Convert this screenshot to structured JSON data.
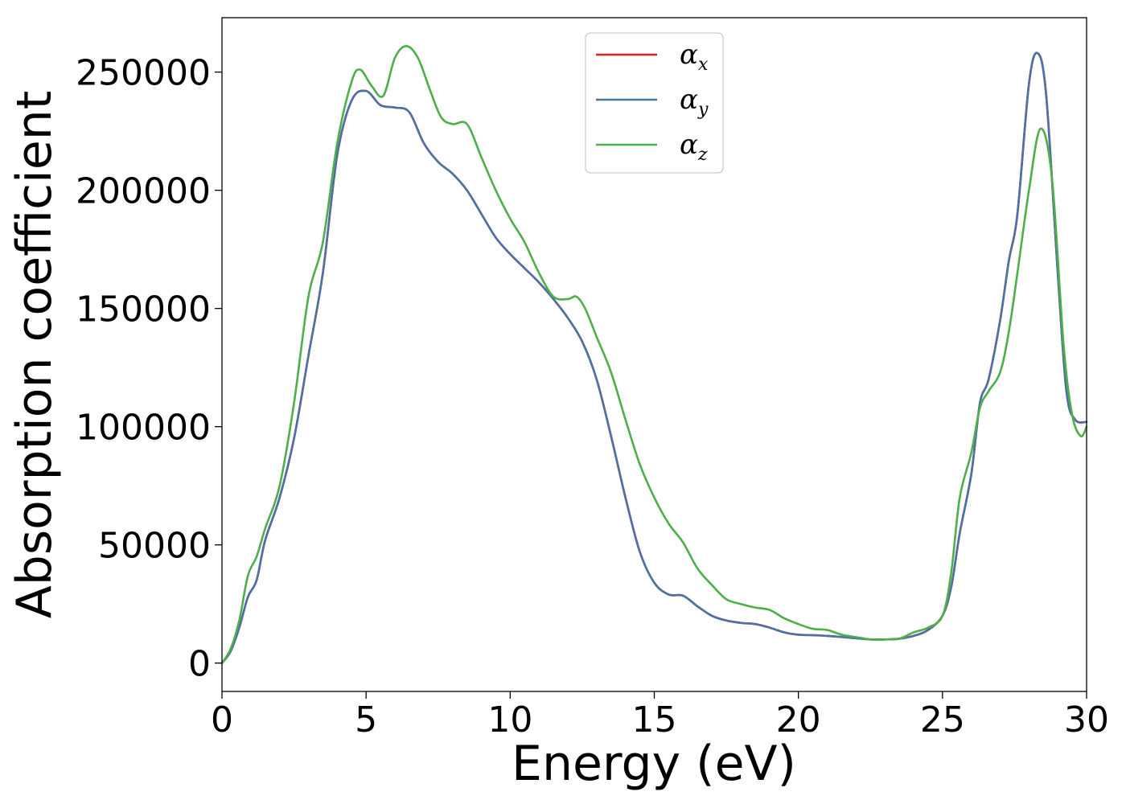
{
  "chart_data": {
    "type": "line",
    "xlabel": "Energy (eV)",
    "ylabel": "Absorption coefficient",
    "xlim": [
      0,
      30
    ],
    "ylim": [
      -12000,
      273000
    ],
    "xticks": [
      0,
      5,
      10,
      15,
      20,
      25,
      30
    ],
    "xtick_labels": [
      "0",
      "5",
      "10",
      "15",
      "20",
      "25",
      "30"
    ],
    "yticks": [
      0,
      50000,
      100000,
      150000,
      200000,
      250000
    ],
    "ytick_labels": [
      "0",
      "50000",
      "100000",
      "150000",
      "200000",
      "250000"
    ],
    "grid": false,
    "legend_position": "top-center",
    "series": [
      {
        "name": "α_x",
        "symbol": "α",
        "subscript": "x",
        "color": "#e41a1c",
        "x": [
          0,
          0.3,
          0.6,
          0.9,
          1.2,
          1.5,
          2.0,
          2.5,
          3.0,
          3.5,
          4.0,
          4.5,
          5.0,
          5.5,
          6.0,
          6.5,
          7.0,
          7.5,
          8.0,
          8.5,
          9.0,
          9.5,
          10.0,
          10.5,
          11.0,
          11.5,
          12.0,
          12.5,
          13.0,
          13.5,
          14.0,
          14.5,
          15.0,
          15.5,
          16.0,
          16.5,
          17.0,
          17.5,
          18.0,
          18.5,
          19.0,
          19.5,
          20.0,
          20.5,
          21.0,
          21.5,
          22.0,
          22.5,
          23.0,
          23.5,
          24.0,
          24.5,
          25.0,
          25.3,
          25.6,
          26.0,
          26.3,
          26.6,
          27.0,
          27.3,
          27.6,
          28.0,
          28.3,
          28.6,
          29.0,
          29.3,
          29.6,
          30.0
        ],
        "y": [
          0,
          5000,
          15000,
          28000,
          35000,
          52000,
          70000,
          95000,
          130000,
          165000,
          215000,
          238000,
          242000,
          236000,
          235000,
          233000,
          220000,
          212000,
          207000,
          200000,
          190000,
          180000,
          173000,
          167000,
          161000,
          154000,
          146000,
          136000,
          120000,
          96000,
          70000,
          47000,
          34000,
          29000,
          28500,
          24000,
          20000,
          18000,
          17000,
          16500,
          15000,
          13000,
          12000,
          11800,
          11500,
          11000,
          10500,
          10000,
          10000,
          10300,
          11500,
          14000,
          20000,
          32000,
          55000,
          80000,
          110000,
          120000,
          145000,
          170000,
          190000,
          245000,
          258000,
          240000,
          165000,
          115000,
          103000,
          102000
        ]
      },
      {
        "name": "α_y",
        "symbol": "α",
        "subscript": "y",
        "color": "#4a72a6",
        "x": [
          0,
          0.3,
          0.6,
          0.9,
          1.2,
          1.5,
          2.0,
          2.5,
          3.0,
          3.5,
          4.0,
          4.5,
          5.0,
          5.5,
          6.0,
          6.5,
          7.0,
          7.5,
          8.0,
          8.5,
          9.0,
          9.5,
          10.0,
          10.5,
          11.0,
          11.5,
          12.0,
          12.5,
          13.0,
          13.5,
          14.0,
          14.5,
          15.0,
          15.5,
          16.0,
          16.5,
          17.0,
          17.5,
          18.0,
          18.5,
          19.0,
          19.5,
          20.0,
          20.5,
          21.0,
          21.5,
          22.0,
          22.5,
          23.0,
          23.5,
          24.0,
          24.5,
          25.0,
          25.3,
          25.6,
          26.0,
          26.3,
          26.6,
          27.0,
          27.3,
          27.6,
          28.0,
          28.3,
          28.6,
          29.0,
          29.3,
          29.6,
          30.0
        ],
        "y": [
          0,
          5000,
          15000,
          28000,
          35000,
          52000,
          70000,
          95000,
          130000,
          165000,
          215000,
          238000,
          242000,
          236000,
          235000,
          233000,
          220000,
          212000,
          207000,
          200000,
          190000,
          180000,
          173000,
          167000,
          161000,
          154000,
          146000,
          136000,
          120000,
          96000,
          70000,
          47000,
          34000,
          29000,
          28500,
          24000,
          20000,
          18000,
          17000,
          16500,
          15000,
          13000,
          12000,
          11800,
          11500,
          11000,
          10500,
          10000,
          10000,
          10300,
          11500,
          14000,
          20000,
          32000,
          55000,
          80000,
          110000,
          120000,
          145000,
          170000,
          190000,
          245000,
          258000,
          240000,
          165000,
          115000,
          103000,
          102000
        ]
      },
      {
        "name": "α_z",
        "symbol": "α",
        "subscript": "z",
        "color": "#4daf4a",
        "x": [
          0,
          0.3,
          0.6,
          0.9,
          1.2,
          1.5,
          2.0,
          2.5,
          3.0,
          3.5,
          4.0,
          4.5,
          4.8,
          5.2,
          5.6,
          6.0,
          6.4,
          6.8,
          7.2,
          7.6,
          8.0,
          8.5,
          9.0,
          9.5,
          10.0,
          10.5,
          11.0,
          11.5,
          12.0,
          12.3,
          12.6,
          13.0,
          13.5,
          14.0,
          14.5,
          15.0,
          15.5,
          16.0,
          16.5,
          17.0,
          17.5,
          18.0,
          18.5,
          19.0,
          19.5,
          20.0,
          20.5,
          21.0,
          21.5,
          22.0,
          22.5,
          23.0,
          23.5,
          24.0,
          24.5,
          25.0,
          25.3,
          25.6,
          26.0,
          26.3,
          26.6,
          27.0,
          27.3,
          27.6,
          28.0,
          28.4,
          28.8,
          29.2,
          29.5,
          29.8,
          30.0
        ],
        "y": [
          0,
          6000,
          18000,
          37000,
          45000,
          57000,
          75000,
          110000,
          155000,
          178000,
          220000,
          246000,
          251000,
          244000,
          240000,
          256000,
          261000,
          256000,
          243000,
          231000,
          228000,
          228000,
          214000,
          200000,
          188000,
          178000,
          165000,
          155000,
          154000,
          155000,
          150000,
          138000,
          123000,
          103000,
          84000,
          70000,
          59000,
          51000,
          40000,
          33000,
          27000,
          25000,
          23500,
          22500,
          19000,
          16500,
          14500,
          14000,
          12000,
          11000,
          10000,
          10000,
          10300,
          13000,
          15000,
          20000,
          38000,
          70000,
          89000,
          108000,
          115000,
          123000,
          140000,
          165000,
          200000,
          226000,
          205000,
          135000,
          105000,
          96000,
          100000
        ]
      }
    ]
  }
}
